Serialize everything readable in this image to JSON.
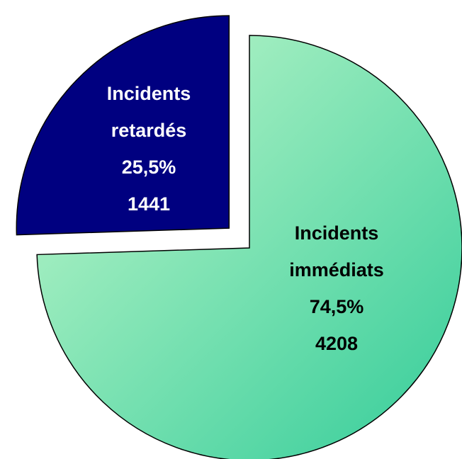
{
  "chart_data": {
    "type": "pie",
    "categories": [
      "Incidents immédiats",
      "Incidents retardés"
    ],
    "values": [
      74.5,
      25.5
    ],
    "value_labels": [
      "74,5%",
      "25,5%"
    ],
    "counts": [
      4208,
      1441
    ],
    "colors": [
      "#7fe0b0",
      "#000080"
    ],
    "exploded": [
      false,
      true
    ]
  }
}
